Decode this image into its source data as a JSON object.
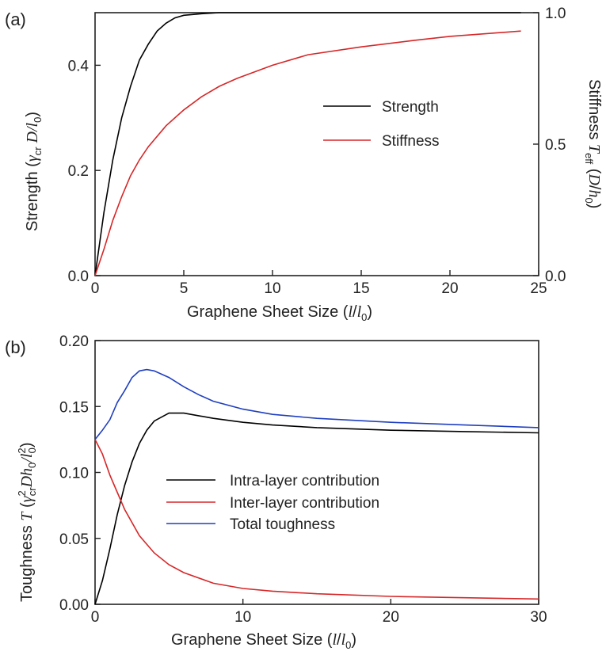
{
  "chart_data": [
    {
      "type": "line",
      "panel_label": "(a)",
      "xlabel": "Graphene Sheet Size (l/l0)",
      "ylabel_left": "Strength (γcr D/l0)",
      "ylabel_right": "Stiffness Teff (D/h0)",
      "xlim": [
        0,
        25
      ],
      "ylim_left": [
        0,
        0.5
      ],
      "ylim_right": [
        0,
        1.0
      ],
      "xticks": [
        "0",
        "5",
        "10",
        "15",
        "20",
        "25"
      ],
      "yticks_left": [
        "0.0",
        "0.2",
        "0.4"
      ],
      "yticks_right": [
        "0.0",
        "0.5",
        "1.0"
      ],
      "legend": "center-right",
      "series": [
        {
          "name": "Strength",
          "color": "#000000",
          "axis": "left",
          "x": [
            0,
            0.5,
            1,
            1.5,
            2,
            2.5,
            3,
            3.5,
            4,
            4.5,
            5,
            6,
            7,
            8,
            10,
            15,
            20,
            24
          ],
          "y": [
            0.0,
            0.12,
            0.22,
            0.3,
            0.36,
            0.41,
            0.44,
            0.465,
            0.48,
            0.49,
            0.495,
            0.498,
            0.5,
            0.5,
            0.5,
            0.5,
            0.5,
            0.5
          ]
        },
        {
          "name": "Stiffness",
          "color": "#d62728",
          "axis": "right",
          "x": [
            0,
            0.5,
            1,
            1.5,
            2,
            2.5,
            3,
            4,
            5,
            6,
            7,
            8,
            10,
            12,
            15,
            18,
            20,
            22,
            24
          ],
          "y": [
            0.0,
            0.1,
            0.21,
            0.3,
            0.38,
            0.44,
            0.49,
            0.57,
            0.63,
            0.68,
            0.72,
            0.75,
            0.8,
            0.84,
            0.87,
            0.895,
            0.91,
            0.92,
            0.93
          ]
        }
      ]
    },
    {
      "type": "line",
      "panel_label": "(b)",
      "xlabel": "Graphene Sheet Size (l/l0)",
      "ylabel": "Toughness T (γcr² D h0/l0²)",
      "xlim": [
        0,
        30
      ],
      "ylim": [
        0,
        0.2
      ],
      "xticks": [
        "0",
        "10",
        "20",
        "30"
      ],
      "yticks": [
        "0.00",
        "0.05",
        "0.10",
        "0.15",
        "0.20"
      ],
      "legend": "center-right",
      "series": [
        {
          "name": "Intra-layer contribution",
          "color": "#000000",
          "x": [
            0,
            0.5,
            1,
            1.5,
            2,
            2.5,
            3,
            3.5,
            4,
            5,
            6,
            7,
            8,
            10,
            12,
            15,
            20,
            25,
            30
          ],
          "y": [
            0.0,
            0.018,
            0.042,
            0.068,
            0.09,
            0.108,
            0.122,
            0.132,
            0.139,
            0.145,
            0.145,
            0.143,
            0.141,
            0.138,
            0.136,
            0.134,
            0.132,
            0.131,
            0.13
          ]
        },
        {
          "name": "Inter-layer contribution",
          "color": "#d62728",
          "x": [
            0,
            0.5,
            1,
            1.5,
            2,
            3,
            4,
            5,
            6,
            8,
            10,
            12,
            15,
            20,
            25,
            30
          ],
          "y": [
            0.125,
            0.114,
            0.098,
            0.085,
            0.072,
            0.052,
            0.039,
            0.03,
            0.024,
            0.016,
            0.012,
            0.01,
            0.008,
            0.006,
            0.005,
            0.004
          ]
        },
        {
          "name": "Total toughness",
          "color": "#1f3fbf",
          "x": [
            0,
            0.5,
            1,
            1.5,
            2,
            2.5,
            3,
            3.5,
            4,
            5,
            6,
            7,
            8,
            10,
            12,
            15,
            20,
            25,
            30
          ],
          "y": [
            0.125,
            0.132,
            0.14,
            0.153,
            0.162,
            0.172,
            0.177,
            0.178,
            0.177,
            0.172,
            0.165,
            0.159,
            0.154,
            0.148,
            0.144,
            0.141,
            0.138,
            0.136,
            0.134
          ]
        }
      ]
    }
  ]
}
